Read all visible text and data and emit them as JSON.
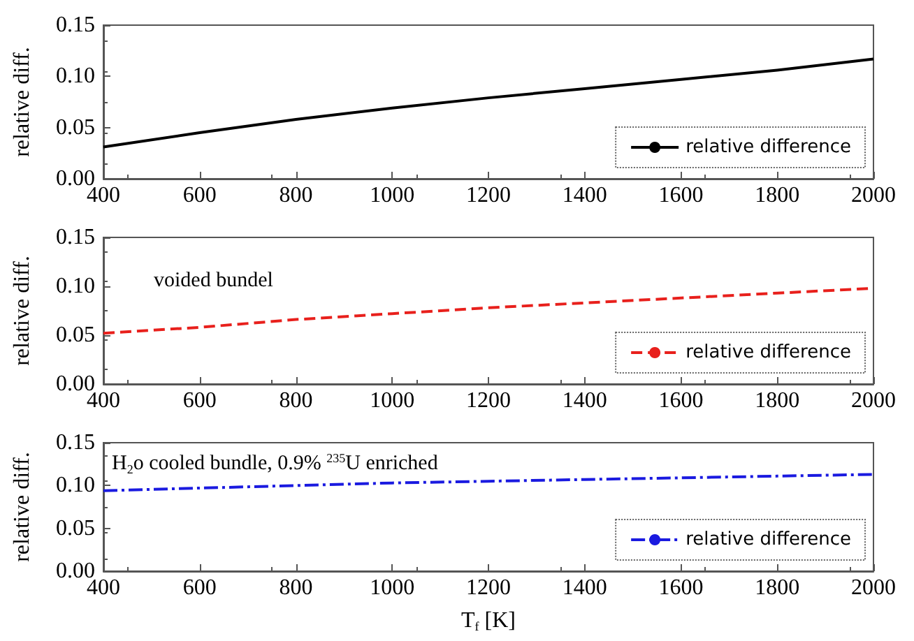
{
  "chart_data": [
    {
      "type": "line",
      "ylabel": "relative diff.",
      "x": [
        400,
        600,
        800,
        1000,
        1200,
        1400,
        1600,
        1800,
        2000
      ],
      "xlim": [
        400,
        2000
      ],
      "xticks": [
        400,
        600,
        800,
        1000,
        1200,
        1400,
        1600,
        1800,
        2000
      ],
      "ylim": [
        0,
        0.15
      ],
      "yticks": [
        {
          "value": 0,
          "label": "0.00"
        },
        {
          "value": 0.05,
          "label": "0.05"
        },
        {
          "value": 0.1,
          "label": "0.10"
        },
        {
          "value": 0.15,
          "label": "0.15"
        }
      ],
      "grid": false,
      "legend": "bottom right",
      "marker": "none",
      "series": [
        {
          "name": "relative difference",
          "color": "#000000",
          "line_style": "solid",
          "values": [
            0.031,
            0.045,
            0.058,
            0.069,
            0.079,
            0.088,
            0.097,
            0.106,
            0.117
          ]
        }
      ]
    },
    {
      "type": "line",
      "ylabel": "relative diff.",
      "annotations": [
        "voided bundel"
      ],
      "x": [
        400,
        600,
        800,
        1000,
        1200,
        1400,
        1600,
        1800,
        2000
      ],
      "xlim": [
        400,
        2000
      ],
      "xticks": [
        400,
        600,
        800,
        1000,
        1200,
        1400,
        1600,
        1800,
        2000
      ],
      "ylim": [
        0,
        0.15
      ],
      "yticks": [
        {
          "value": 0,
          "label": "0.00"
        },
        {
          "value": 0.05,
          "label": "0.05"
        },
        {
          "value": 0.1,
          "label": "0.10"
        },
        {
          "value": 0.15,
          "label": "0.15"
        }
      ],
      "grid": false,
      "legend": "bottom right",
      "marker": "none",
      "series": [
        {
          "name": "relative difference",
          "color": "#e8201c",
          "line_style": "dashed",
          "values": [
            0.052,
            0.058,
            0.066,
            0.072,
            0.078,
            0.083,
            0.088,
            0.093,
            0.098
          ]
        }
      ]
    },
    {
      "type": "line",
      "ylabel": "relative diff.",
      "xlabel": "T$_{f}$ [K]",
      "annotations": [
        "H$_{2}$o cooled bundle, 0.9% $^{235}$U enriched"
      ],
      "x": [
        400,
        600,
        800,
        1000,
        1200,
        1400,
        1600,
        1800,
        2000
      ],
      "xlim": [
        400,
        2000
      ],
      "xticks": [
        400,
        600,
        800,
        1000,
        1200,
        1400,
        1600,
        1800,
        2000
      ],
      "ylim": [
        0,
        0.15
      ],
      "yticks": [
        {
          "value": 0,
          "label": "0.00"
        },
        {
          "value": 0.05,
          "label": "0.05"
        },
        {
          "value": 0.1,
          "label": "0.10"
        },
        {
          "value": 0.15,
          "label": "0.15"
        }
      ],
      "grid": false,
      "legend": "bottom right",
      "marker": "none",
      "series": [
        {
          "name": "relative difference",
          "color": "#1a1ae0",
          "line_style": "dashdot",
          "values": [
            0.094,
            0.097,
            0.1,
            0.103,
            0.105,
            0.107,
            0.109,
            0.111,
            0.113
          ]
        }
      ]
    }
  ]
}
